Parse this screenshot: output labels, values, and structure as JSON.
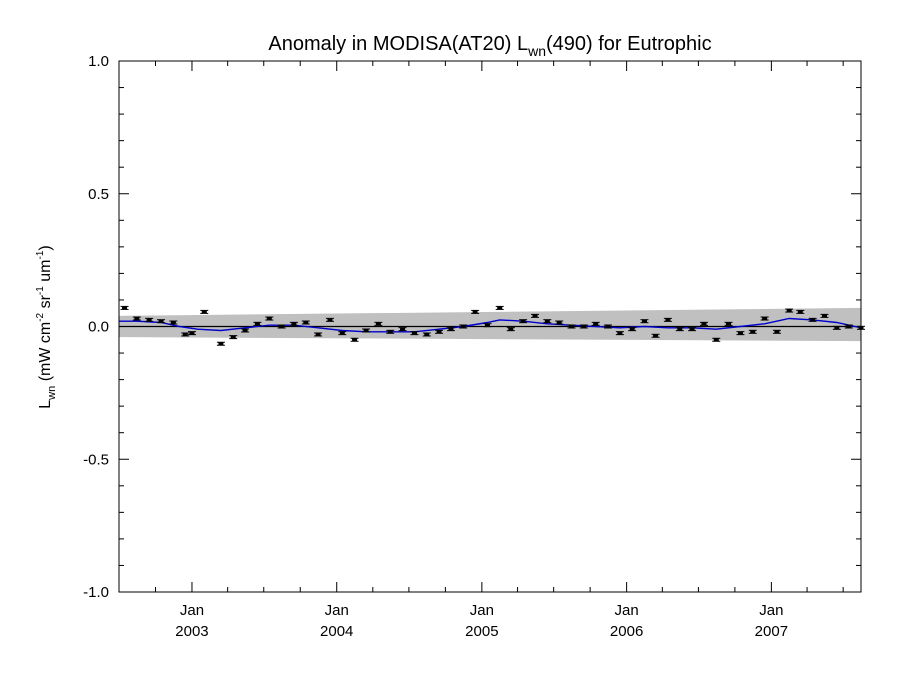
{
  "chart_data": {
    "type": "line",
    "title": {
      "prefix": "Anomaly in MODISA(AT20) L",
      "sub": "wn",
      "suffix": "(490) for Eutrophic"
    },
    "ylabel": {
      "a": "L",
      "a_sub": "wn",
      "b": " (mW cm",
      "b_sup": "-2",
      "c": " sr",
      "c_sup": "-1",
      "d": " um",
      "d_sup": "-1",
      "e": ")"
    },
    "xlim": [
      "2002-07-01",
      "2007-08-15"
    ],
    "ylim": [
      -1.0,
      1.0
    ],
    "y_ticks": [
      {
        "value": 1.0,
        "label": "1.0"
      },
      {
        "value": 0.5,
        "label": "0.5"
      },
      {
        "value": 0.0,
        "label": "0.0"
      },
      {
        "value": -0.5,
        "label": "-0.5"
      },
      {
        "value": -1.0,
        "label": "-1.0"
      }
    ],
    "x_ticks": [
      {
        "date": "2003-01-01",
        "month": "Jan",
        "year": "2003"
      },
      {
        "date": "2004-01-01",
        "month": "Jan",
        "year": "2004"
      },
      {
        "date": "2005-01-01",
        "month": "Jan",
        "year": "2005"
      },
      {
        "date": "2006-01-01",
        "month": "Jan",
        "year": "2006"
      },
      {
        "date": "2007-01-01",
        "month": "Jan",
        "year": "2007"
      }
    ],
    "zero_line": 0.0,
    "uncertainty_band": {
      "color": "#c0c0c0",
      "start": {
        "date": "2002-07-01",
        "low": -0.04,
        "high": 0.04
      },
      "end": {
        "date": "2007-08-15",
        "low": -0.055,
        "high": 0.07
      }
    },
    "series": [
      {
        "color": "#000000",
        "style": "errorbar-points",
        "points": [
          {
            "date": "2002-07-15",
            "value": 0.07
          },
          {
            "date": "2002-08-15",
            "value": 0.03
          },
          {
            "date": "2002-09-15",
            "value": 0.025
          },
          {
            "date": "2002-10-15",
            "value": 0.02
          },
          {
            "date": "2002-11-15",
            "value": 0.015
          },
          {
            "date": "2002-12-15",
            "value": -0.03
          },
          {
            "date": "2003-01-01",
            "value": -0.025
          },
          {
            "date": "2003-02-01",
            "value": 0.055
          },
          {
            "date": "2003-03-15",
            "value": -0.065
          },
          {
            "date": "2003-04-15",
            "value": -0.04
          },
          {
            "date": "2003-05-15",
            "value": -0.015
          },
          {
            "date": "2003-06-15",
            "value": 0.01
          },
          {
            "date": "2003-07-15",
            "value": 0.03
          },
          {
            "date": "2003-08-15",
            "value": 0.0
          },
          {
            "date": "2003-09-15",
            "value": 0.01
          },
          {
            "date": "2003-10-15",
            "value": 0.015
          },
          {
            "date": "2003-11-15",
            "value": -0.03
          },
          {
            "date": "2003-12-15",
            "value": 0.025
          },
          {
            "date": "2004-01-15",
            "value": -0.025
          },
          {
            "date": "2004-02-15",
            "value": -0.05
          },
          {
            "date": "2004-03-15",
            "value": -0.015
          },
          {
            "date": "2004-04-15",
            "value": 0.01
          },
          {
            "date": "2004-05-15",
            "value": -0.02
          },
          {
            "date": "2004-06-15",
            "value": -0.01
          },
          {
            "date": "2004-07-15",
            "value": -0.025
          },
          {
            "date": "2004-08-15",
            "value": -0.03
          },
          {
            "date": "2004-09-15",
            "value": -0.02
          },
          {
            "date": "2004-10-15",
            "value": -0.01
          },
          {
            "date": "2004-11-15",
            "value": 0.0
          },
          {
            "date": "2004-12-15",
            "value": 0.055
          },
          {
            "date": "2005-01-15",
            "value": 0.005
          },
          {
            "date": "2005-02-15",
            "value": 0.07
          },
          {
            "date": "2005-03-15",
            "value": -0.01
          },
          {
            "date": "2005-04-15",
            "value": 0.02
          },
          {
            "date": "2005-05-15",
            "value": 0.04
          },
          {
            "date": "2005-06-15",
            "value": 0.02
          },
          {
            "date": "2005-07-15",
            "value": 0.015
          },
          {
            "date": "2005-08-15",
            "value": 0.0
          },
          {
            "date": "2005-09-15",
            "value": 0.0
          },
          {
            "date": "2005-10-15",
            "value": 0.01
          },
          {
            "date": "2005-11-15",
            "value": 0.0
          },
          {
            "date": "2005-12-15",
            "value": -0.025
          },
          {
            "date": "2006-01-15",
            "value": -0.01
          },
          {
            "date": "2006-02-15",
            "value": 0.02
          },
          {
            "date": "2006-03-15",
            "value": -0.035
          },
          {
            "date": "2006-04-15",
            "value": 0.025
          },
          {
            "date": "2006-05-15",
            "value": -0.01
          },
          {
            "date": "2006-06-15",
            "value": -0.01
          },
          {
            "date": "2006-07-15",
            "value": 0.01
          },
          {
            "date": "2006-08-15",
            "value": -0.05
          },
          {
            "date": "2006-09-15",
            "value": 0.01
          },
          {
            "date": "2006-10-15",
            "value": -0.025
          },
          {
            "date": "2006-11-15",
            "value": -0.02
          },
          {
            "date": "2006-12-15",
            "value": 0.03
          },
          {
            "date": "2007-01-15",
            "value": -0.02
          },
          {
            "date": "2007-02-15",
            "value": 0.06
          },
          {
            "date": "2007-03-15",
            "value": 0.055
          },
          {
            "date": "2007-04-15",
            "value": 0.025
          },
          {
            "date": "2007-05-15",
            "value": 0.04
          },
          {
            "date": "2007-06-15",
            "value": -0.005
          },
          {
            "date": "2007-07-15",
            "value": 0.0
          },
          {
            "date": "2007-08-15",
            "value": -0.005
          }
        ]
      },
      {
        "color": "#0000cc",
        "style": "line",
        "points": [
          {
            "date": "2002-07-01",
            "value": 0.02
          },
          {
            "date": "2002-08-15",
            "value": 0.02
          },
          {
            "date": "2002-10-15",
            "value": 0.015
          },
          {
            "date": "2002-12-01",
            "value": 0.0
          },
          {
            "date": "2003-01-15",
            "value": -0.01
          },
          {
            "date": "2003-03-15",
            "value": -0.015
          },
          {
            "date": "2003-05-15",
            "value": -0.005
          },
          {
            "date": "2003-07-15",
            "value": 0.005
          },
          {
            "date": "2003-09-15",
            "value": 0.005
          },
          {
            "date": "2003-11-15",
            "value": -0.005
          },
          {
            "date": "2004-01-15",
            "value": -0.015
          },
          {
            "date": "2004-03-15",
            "value": -0.02
          },
          {
            "date": "2004-05-15",
            "value": -0.02
          },
          {
            "date": "2004-07-15",
            "value": -0.02
          },
          {
            "date": "2004-09-15",
            "value": -0.01
          },
          {
            "date": "2004-11-15",
            "value": 0.0
          },
          {
            "date": "2005-01-15",
            "value": 0.015
          },
          {
            "date": "2005-02-15",
            "value": 0.025
          },
          {
            "date": "2005-04-15",
            "value": 0.02
          },
          {
            "date": "2005-06-15",
            "value": 0.01
          },
          {
            "date": "2005-08-15",
            "value": 0.005
          },
          {
            "date": "2005-10-15",
            "value": 0.0
          },
          {
            "date": "2005-12-15",
            "value": -0.005
          },
          {
            "date": "2006-02-15",
            "value": 0.0
          },
          {
            "date": "2006-04-15",
            "value": -0.005
          },
          {
            "date": "2006-06-15",
            "value": -0.005
          },
          {
            "date": "2006-08-15",
            "value": -0.01
          },
          {
            "date": "2006-10-15",
            "value": 0.0
          },
          {
            "date": "2006-12-15",
            "value": 0.01
          },
          {
            "date": "2007-02-15",
            "value": 0.03
          },
          {
            "date": "2007-04-15",
            "value": 0.025
          },
          {
            "date": "2007-06-15",
            "value": 0.015
          },
          {
            "date": "2007-08-15",
            "value": -0.005
          }
        ]
      }
    ]
  }
}
